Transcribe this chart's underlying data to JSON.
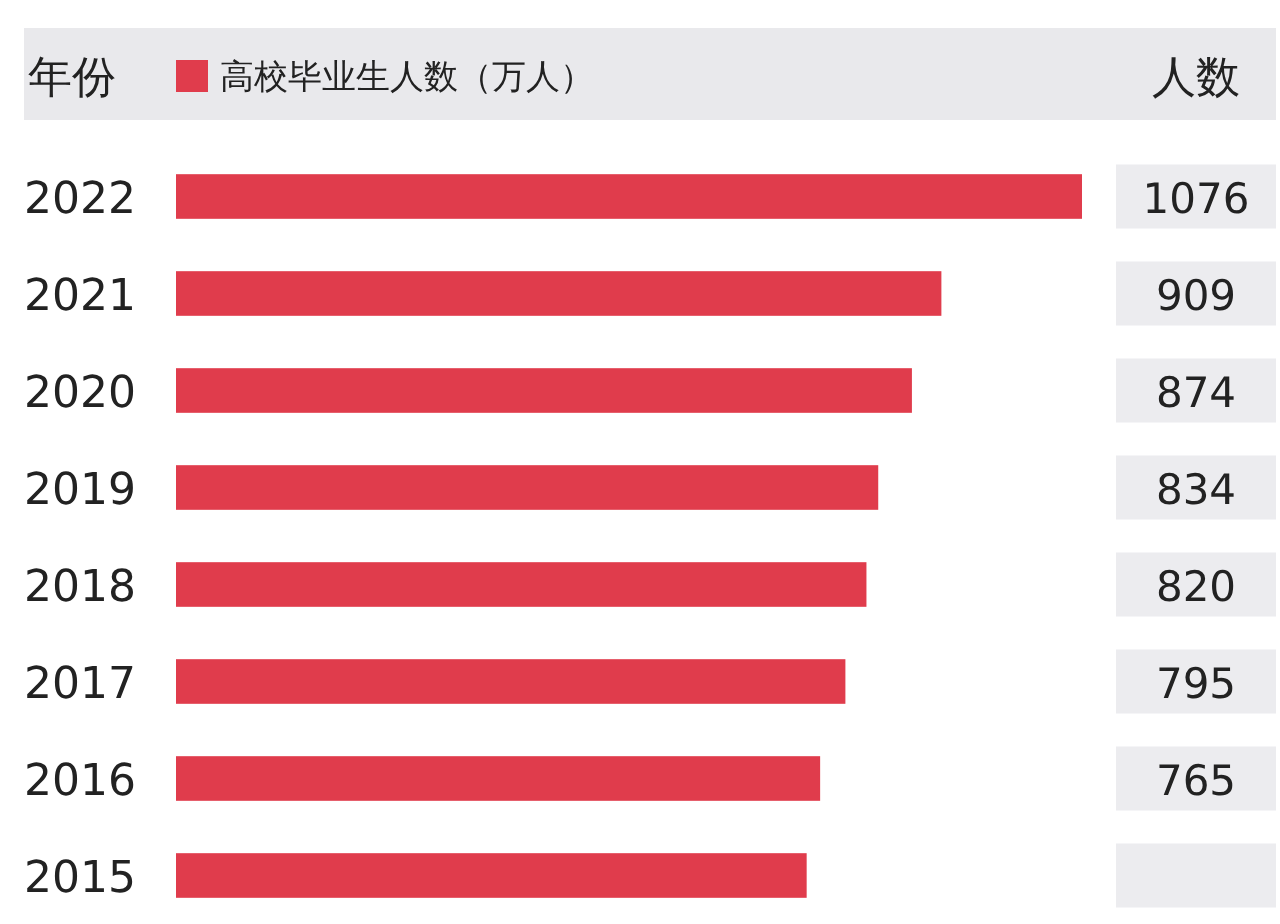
{
  "chart_data": {
    "type": "bar",
    "orientation": "horizontal",
    "ylabel": "年份",
    "annotations": [
      "人数"
    ],
    "legend": "top left",
    "categories": [
      "2022",
      "2021",
      "2020",
      "2019",
      "2018",
      "2017",
      "2016",
      "2015"
    ],
    "series": [
      {
        "name": "高校毕业生人数（万人）",
        "color": "#e03c4c",
        "values": [
          1076,
          909,
          874,
          834,
          820,
          795,
          765,
          749
        ],
        "value_labels": [
          "1076",
          "909",
          "874",
          "834",
          "820",
          "795",
          "765",
          null
        ]
      }
    ]
  }
}
